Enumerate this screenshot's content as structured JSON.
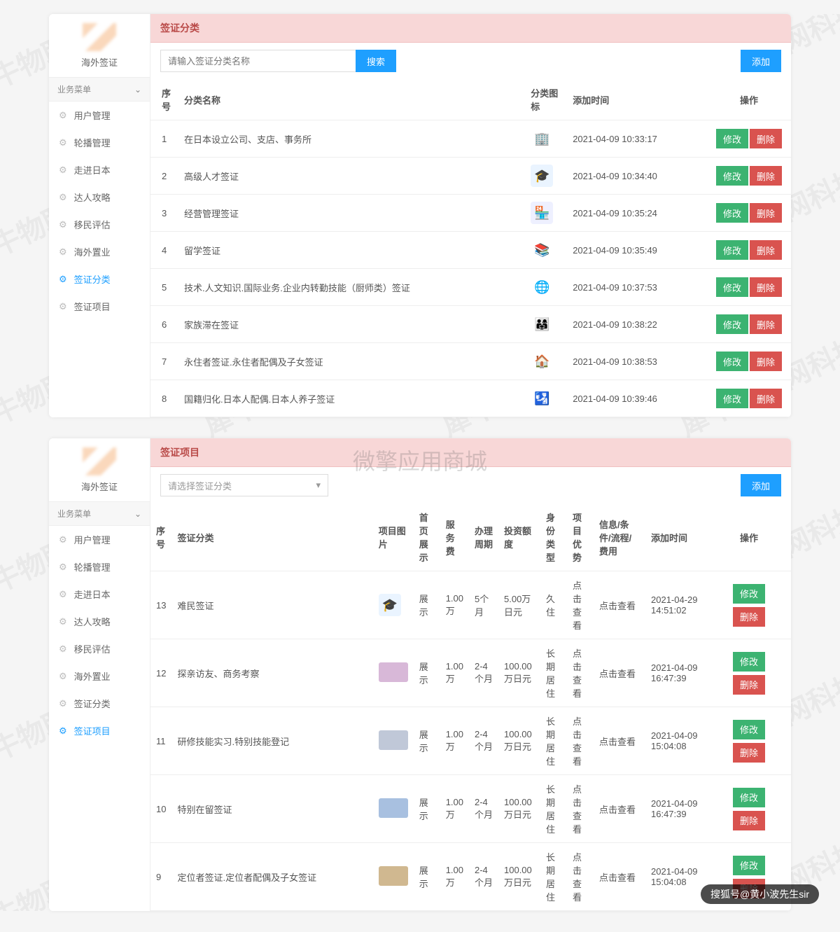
{
  "watermark_text": "犀牛物联网科技",
  "center_watermark": "微擎应用商城",
  "footer_credit": "搜狐号@黄小波先生sir",
  "logo_text": "海外签证",
  "sidebar": {
    "menu_header": "业务菜单",
    "chevron": "⌄",
    "items": [
      {
        "label": "用户管理"
      },
      {
        "label": "轮播管理"
      },
      {
        "label": "走进日本"
      },
      {
        "label": "达人攻略"
      },
      {
        "label": "移民评估"
      },
      {
        "label": "海外置业"
      },
      {
        "label": "签证分类"
      },
      {
        "label": "签证项目"
      }
    ]
  },
  "colors": {
    "header_bg": "#f8d7d7",
    "header_fg": "#b94a48",
    "primary": "#1e9fff",
    "success": "#3cb371",
    "danger": "#d9534f"
  },
  "panel1": {
    "title": "签证分类",
    "search_placeholder": "请输入签证分类名称",
    "search_btn": "搜索",
    "add_btn": "添加",
    "active_menu": "签证分类",
    "columns": [
      "序号",
      "分类名称",
      "分类图标",
      "添加时间",
      "操作"
    ],
    "rows": [
      {
        "idx": "1",
        "name": "在日本设立公司、支店、事务所",
        "icon": "🏢",
        "icon_bg": "#fff",
        "icon_fg": "#e6a23c",
        "time": "2021-04-09 10:33:17"
      },
      {
        "idx": "2",
        "name": "高级人才签证",
        "icon": "🎓",
        "icon_bg": "#eaf4ff",
        "icon_fg": "#409eff",
        "time": "2021-04-09 10:34:40"
      },
      {
        "idx": "3",
        "name": "经营管理签证",
        "icon": "🏪",
        "icon_bg": "#eef0ff",
        "icon_fg": "#6b7cff",
        "time": "2021-04-09 10:35:24"
      },
      {
        "idx": "4",
        "name": "留学签证",
        "icon": "📚",
        "icon_bg": "#fff",
        "icon_fg": "#2d7bd8",
        "time": "2021-04-09 10:35:49"
      },
      {
        "idx": "5",
        "name": "技术.人文知识.国际业务.企业内转勤技能（厨师类）签证",
        "icon": "🌐",
        "icon_bg": "#fff",
        "icon_fg": "#e64545",
        "time": "2021-04-09 10:37:53"
      },
      {
        "idx": "6",
        "name": "家族滞在签证",
        "icon": "👨‍👩‍👧",
        "icon_bg": "#fff",
        "icon_fg": "#f56c6c",
        "time": "2021-04-09 10:38:22"
      },
      {
        "idx": "7",
        "name": "永住者签证.永住者配偶及子女签证",
        "icon": "🏠",
        "icon_bg": "#fff",
        "icon_fg": "#5cb85c",
        "time": "2021-04-09 10:38:53"
      },
      {
        "idx": "8",
        "name": "国籍归化.日本人配偶.日本人养子签证",
        "icon": "🛂",
        "icon_bg": "#fff",
        "icon_fg": "#b565d8",
        "time": "2021-04-09 10:39:46"
      }
    ],
    "edit_btn": "修改",
    "del_btn": "删除"
  },
  "panel2": {
    "title": "签证项目",
    "select_placeholder": "请选择签证分类",
    "add_btn": "添加",
    "active_menu": "签证项目",
    "columns": [
      "序号",
      "签证分类",
      "项目图片",
      "首页展示",
      "服务费",
      "办理周期",
      "投资额度",
      "身份类型",
      "项目优势",
      "信息/条件/流程/费用",
      "添加时间",
      "操作"
    ],
    "rows": [
      {
        "idx": "13",
        "cat": "难民签证",
        "thumb": "#cfe6ff",
        "show": "展示",
        "fee": "1.00万",
        "cycle": "5个月",
        "invest": "5.00万日元",
        "type": "久住",
        "adv": "点击查看",
        "info": "点击查看",
        "time": "2021-04-29 14:51:02"
      },
      {
        "idx": "12",
        "cat": "探亲访友、商务考察",
        "thumb": "#d8b8d8",
        "show": "展示",
        "fee": "1.00万",
        "cycle": "2-4个月",
        "invest": "100.00万日元",
        "type": "长期居住",
        "adv": "点击查看",
        "info": "点击查看",
        "time": "2021-04-09 16:47:39"
      },
      {
        "idx": "11",
        "cat": "研修技能实习.特别技能登记",
        "thumb": "#c0c8d8",
        "show": "展示",
        "fee": "1.00万",
        "cycle": "2-4个月",
        "invest": "100.00万日元",
        "type": "长期居住",
        "adv": "点击查看",
        "info": "点击查看",
        "time": "2021-04-09 15:04:08"
      },
      {
        "idx": "10",
        "cat": "特别在留签证",
        "thumb": "#a8c0e0",
        "show": "展示",
        "fee": "1.00万",
        "cycle": "2-4个月",
        "invest": "100.00万日元",
        "type": "长期居住",
        "adv": "点击查看",
        "info": "点击查看",
        "time": "2021-04-09 16:47:39"
      },
      {
        "idx": "9",
        "cat": "定位者签证.定位者配偶及子女签证",
        "thumb": "#d0b890",
        "show": "展示",
        "fee": "1.00万",
        "cycle": "2-4个月",
        "invest": "100.00万日元",
        "type": "长期居住",
        "adv": "点击查看",
        "info": "点击查看",
        "time": "2021-04-09 15:04:08"
      }
    ],
    "edit_btn": "修改",
    "del_btn": "删除"
  }
}
